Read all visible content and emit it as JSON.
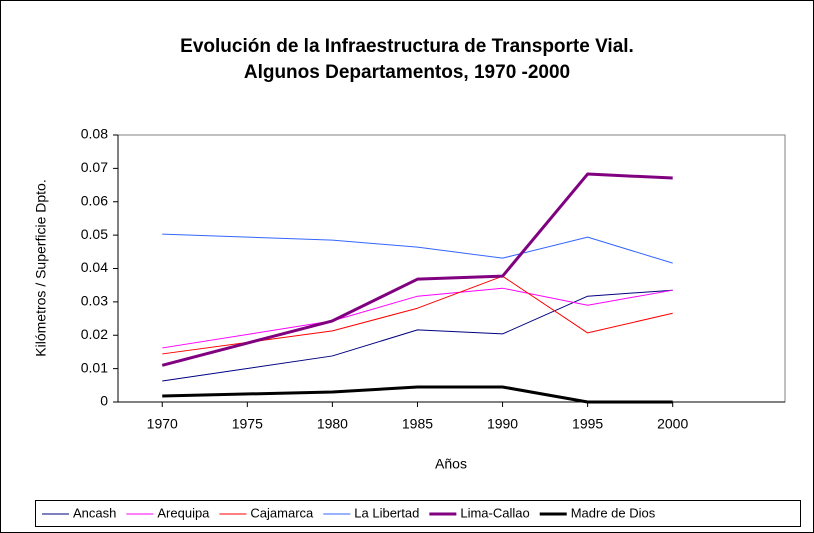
{
  "chart_data": {
    "type": "line",
    "title": [
      "Evolución de la Infraestructura de Transporte Vial.",
      "Algunos Departamentos, 1970 -2000"
    ],
    "x_label": "Años",
    "y_label": "Kilómetros / Superficie Dpto.",
    "x": [
      1970,
      1980,
      1985,
      1990,
      1995,
      2000
    ],
    "xlim": [
      1967.4,
      2006.6
    ],
    "xticks": [
      1970,
      1975,
      1980,
      1985,
      1990,
      1995,
      2000
    ],
    "ylim": [
      0,
      0.08
    ],
    "yticks": [
      0,
      0.01,
      0.02,
      0.03,
      0.04,
      0.05,
      0.06,
      0.07,
      0.08
    ],
    "grid": false,
    "legend": "bottom",
    "series": [
      {
        "name": "Ancash",
        "color": "#000080",
        "line_width": 1,
        "values": [
          0.0063,
          0.0138,
          0.0216,
          0.0204,
          0.0317,
          0.0335
        ]
      },
      {
        "name": "Arequipa",
        "color": "#ff00ff",
        "line_width": 1,
        "values": [
          0.0162,
          0.0243,
          0.0317,
          0.0341,
          0.029,
          0.0335
        ]
      },
      {
        "name": "Cajamarca",
        "color": "#ff0000",
        "line_width": 1,
        "values": [
          0.0144,
          0.0213,
          0.0281,
          0.0377,
          0.0207,
          0.0266
        ]
      },
      {
        "name": "La Libertad",
        "color": "#3366ff",
        "line_width": 1,
        "values": [
          0.0503,
          0.0485,
          0.0464,
          0.0431,
          0.0494,
          0.0416
        ]
      },
      {
        "name": "Lima-Callao",
        "color": "#800080",
        "line_width": 3,
        "values": [
          0.011,
          0.0243,
          0.0368,
          0.0377,
          0.0683,
          0.0671
        ]
      },
      {
        "name": "Madre de Dios",
        "color": "#000000",
        "line_width": 3,
        "values": [
          0.0018,
          0.003,
          0.0045,
          0.0045,
          0,
          0
        ]
      }
    ]
  }
}
